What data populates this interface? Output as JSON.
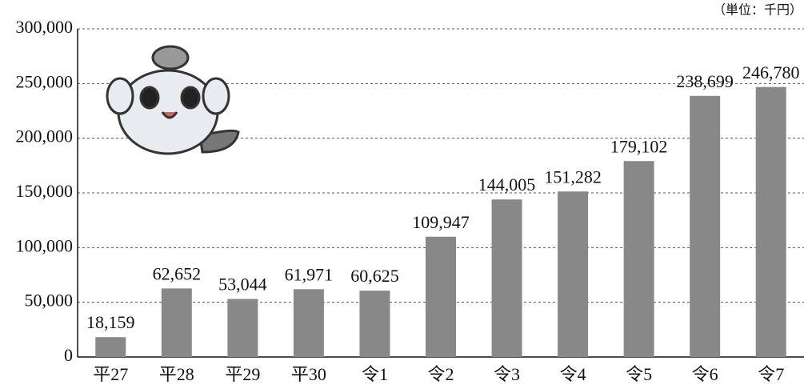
{
  "chart_data": {
    "type": "bar",
    "unit": "（単位：千円）",
    "categories": [
      "平27",
      "平28",
      "平29",
      "平30",
      "令1",
      "令2",
      "令3",
      "令4",
      "令5",
      "令6",
      "令7"
    ],
    "values": [
      18159,
      62652,
      53044,
      61971,
      60625,
      109947,
      144005,
      151282,
      179102,
      238699,
      246780
    ],
    "value_labels": [
      "18,159",
      "62,652",
      "53,044",
      "61,971",
      "60,625",
      "109,947",
      "144,005",
      "151,282",
      "179,102",
      "238,699",
      "246,780"
    ],
    "color": "#888888",
    "ylim": [
      0,
      300000
    ],
    "yticks": [
      0,
      {
        "value": 50000,
        "label": "50,000"
      },
      {
        "value": 100000,
        "label": "100,000"
      },
      {
        "value": 150000,
        "label": "150,000"
      },
      {
        "value": 200000,
        "label": "200,000"
      },
      {
        "value": 250000,
        "label": "250,000"
      },
      {
        "value": 300000,
        "label": "300,000"
      }
    ],
    "grid": true
  }
}
